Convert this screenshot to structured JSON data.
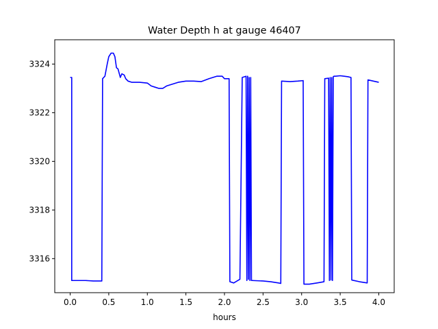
{
  "chart_data": {
    "type": "line",
    "title": "Water Depth h at gauge 46407",
    "xlabel": "hours",
    "ylabel": "",
    "xlim": [
      -0.2,
      4.2
    ],
    "ylim": [
      3314.6,
      3325.0
    ],
    "x_ticks": [
      0.0,
      0.5,
      1.0,
      1.5,
      2.0,
      2.5,
      3.0,
      3.5,
      4.0
    ],
    "x_tick_labels": [
      "0.0",
      "0.5",
      "1.0",
      "1.5",
      "2.0",
      "2.5",
      "3.0",
      "3.5",
      "4.0"
    ],
    "y_ticks": [
      3316,
      3318,
      3320,
      3322,
      3324
    ],
    "y_tick_labels": [
      "3316",
      "3318",
      "3320",
      "3322",
      "3324"
    ],
    "grid": false,
    "series": [
      {
        "color": "#0000ff",
        "x": [
          0.0,
          0.02,
          0.02,
          0.2,
          0.3,
          0.41,
          0.42,
          0.45,
          0.48,
          0.5,
          0.53,
          0.56,
          0.58,
          0.6,
          0.62,
          0.65,
          0.67,
          0.7,
          0.72,
          0.75,
          0.8,
          0.9,
          1.0,
          1.05,
          1.1,
          1.15,
          1.2,
          1.25,
          1.3,
          1.35,
          1.4,
          1.5,
          1.6,
          1.7,
          1.8,
          1.9,
          1.97,
          2.0,
          2.06,
          2.07,
          2.12,
          2.2,
          2.23,
          2.28,
          2.29,
          2.3,
          2.31,
          2.32,
          2.33,
          2.34,
          2.35,
          2.36,
          2.5,
          2.6,
          2.7,
          2.73,
          2.74,
          2.85,
          2.95,
          3.02,
          3.03,
          3.1,
          3.2,
          3.29,
          3.3,
          3.35,
          3.36,
          3.37,
          3.38,
          3.39,
          3.4,
          3.41,
          3.42,
          3.43,
          3.44,
          3.5,
          3.55,
          3.6,
          3.64,
          3.65,
          3.75,
          3.85,
          3.86,
          4.0
        ],
        "y": [
          3323.45,
          3323.45,
          3315.1,
          3315.1,
          3315.08,
          3315.08,
          3323.4,
          3323.5,
          3324.0,
          3324.3,
          3324.45,
          3324.45,
          3324.3,
          3323.85,
          3323.8,
          3323.45,
          3323.6,
          3323.55,
          3323.4,
          3323.3,
          3323.25,
          3323.25,
          3323.22,
          3323.1,
          3323.05,
          3323.0,
          3323.0,
          3323.1,
          3323.15,
          3323.2,
          3323.25,
          3323.3,
          3323.3,
          3323.28,
          3323.4,
          3323.5,
          3323.5,
          3323.4,
          3323.4,
          3315.05,
          3315.0,
          3315.15,
          3323.45,
          3323.5,
          3315.1,
          3323.5,
          3315.15,
          3323.45,
          3315.1,
          3323.45,
          3315.1,
          3315.1,
          3315.08,
          3315.05,
          3315.0,
          3314.98,
          3323.3,
          3323.28,
          3323.3,
          3323.32,
          3314.95,
          3314.95,
          3315.0,
          3315.05,
          3323.4,
          3323.42,
          3315.1,
          3323.45,
          3315.12,
          3323.45,
          3315.1,
          3323.48,
          3323.5,
          3323.5,
          3323.5,
          3323.52,
          3323.5,
          3323.48,
          3323.45,
          3315.12,
          3315.05,
          3315.0,
          3323.35,
          3323.25
        ]
      }
    ]
  }
}
